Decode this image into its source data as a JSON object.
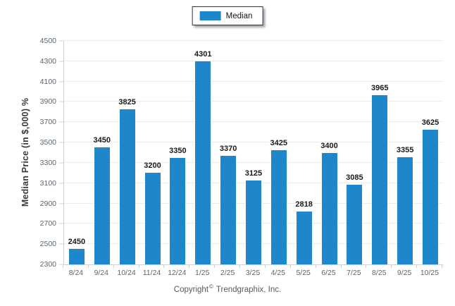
{
  "legend": {
    "label": "Median"
  },
  "footer": {
    "pre": "Copyright",
    "symbol": "©",
    "post": "Trendgraphix, Inc."
  },
  "colors": {
    "bar": "#1E86CA",
    "legend_border": "#17375E",
    "gridline": "#ECECEC",
    "axis": "#C9D3DC",
    "tick_label": "#5A6470",
    "value_label": "#1A1A1A",
    "footer_text": "#595959"
  },
  "chart_data": {
    "type": "bar",
    "title": "",
    "categories": [
      "8/24",
      "9/24",
      "10/24",
      "11/24",
      "12/24",
      "1/25",
      "2/25",
      "3/25",
      "4/25",
      "5/25",
      "6/25",
      "7/25",
      "8/25",
      "9/25",
      "10/25"
    ],
    "series": [
      {
        "name": "Median",
        "values": [
          2450,
          3450,
          3825,
          3200,
          3350,
          4301,
          3370,
          3125,
          3425,
          2818,
          3400,
          3085,
          3965,
          3355,
          3625
        ]
      }
    ],
    "xlabel": "",
    "ylabel": "Median Price (in $,000) %",
    "ylim": [
      2300,
      4500
    ],
    "ytick_step": 200,
    "grid": true,
    "legend_position": "top-center",
    "bar_color": "#1E86CA",
    "value_labels_shown": true
  }
}
